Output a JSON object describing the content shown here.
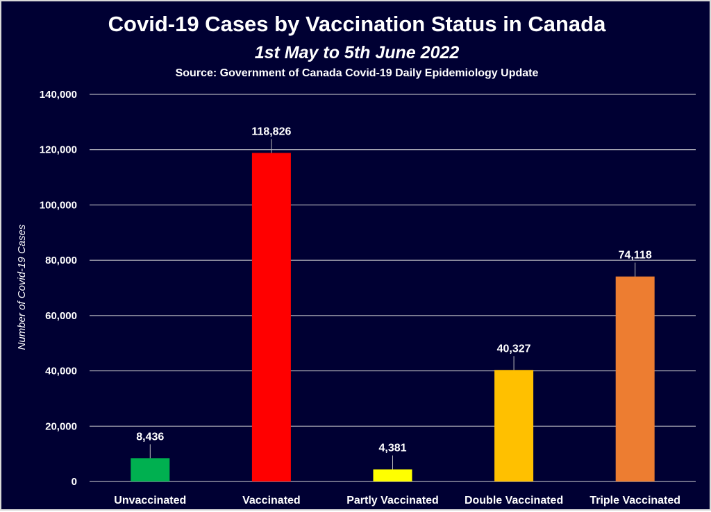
{
  "chart_data": {
    "type": "bar",
    "title": "Covid-19 Cases by Vaccination Status in Canada",
    "subtitle": "1st May to 5th June 2022",
    "source": "Source: Government of Canada Covid-19 Daily Epidemiology Update",
    "xlabel": "",
    "ylabel": "Number of Covid-19 Cases",
    "ylim": [
      0,
      140000
    ],
    "yticks": [
      0,
      20000,
      40000,
      60000,
      80000,
      100000,
      120000,
      140000
    ],
    "ytick_labels": [
      "0",
      "20,000",
      "40,000",
      "60,000",
      "80,000",
      "100,000",
      "120,000",
      "140,000"
    ],
    "categories": [
      "Unvaccinated",
      "Vaccinated",
      "Partly Vaccinated",
      "Double Vaccinated",
      "Triple Vaccinated"
    ],
    "values": [
      8436,
      118826,
      4381,
      40327,
      74118
    ],
    "value_labels": [
      "8,436",
      "118,826",
      "4,381",
      "40,327",
      "74,118"
    ],
    "colors": [
      "#00b050",
      "#ff0000",
      "#ffff00",
      "#ffc000",
      "#ed7d31"
    ],
    "background_color": "#000033",
    "grid": true,
    "legend": "none"
  }
}
